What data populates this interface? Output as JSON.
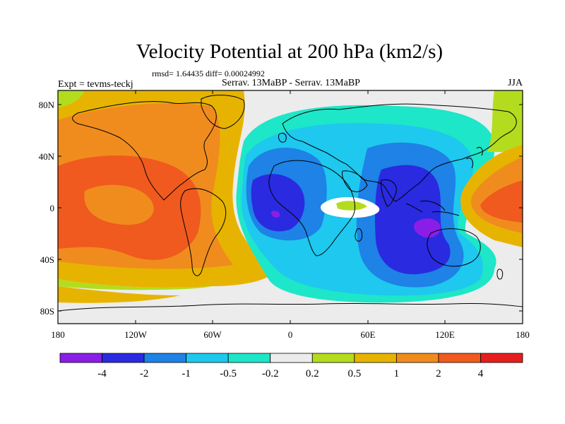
{
  "title": "Velocity Potential at 200 hPa (km2/s)",
  "stats": "rmsd= 1.64435 diff= 0.00024992",
  "left_label": "Expt = tevms-teckj",
  "center_label": "Serrav.   13MaBP - Serrav.   13MaBP",
  "right_label": "JJA",
  "y_ticks": [
    "80N",
    "40N",
    "0",
    "40S",
    "80S"
  ],
  "x_ticks": [
    "180",
    "120W",
    "60W",
    "0",
    "60E",
    "120E",
    "180"
  ],
  "colorbar": {
    "labels": [
      "-4",
      "-2",
      "-1",
      "-0.5",
      "-0.2",
      "0.2",
      "0.5",
      "1",
      "2",
      "4"
    ],
    "colors": [
      "#8a1ee6",
      "#2a2ae0",
      "#1e82e6",
      "#1ec8ee",
      "#1ee6c8",
      "#ececec",
      "#b4dc1e",
      "#e6b400",
      "#f08c1e",
      "#f05a1e",
      "#e61e1e"
    ]
  }
}
